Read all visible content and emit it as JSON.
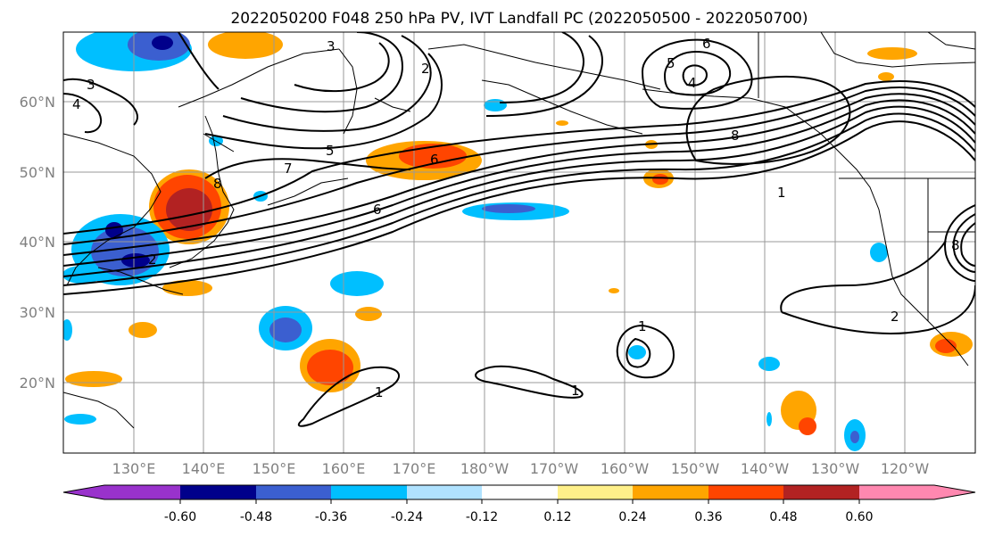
{
  "title": "2022050200 F048 250 hPa PV, IVT Landfall PC (2022050500 - 2022050700)",
  "lat_labels": [
    "60°N",
    "50°N",
    "40°N",
    "30°N",
    "20°N"
  ],
  "lon_labels": [
    "130°E",
    "140°E",
    "150°E",
    "160°E",
    "170°E",
    "180°W",
    "170°W",
    "160°W",
    "150°W",
    "140°W",
    "130°W",
    "120°W"
  ],
  "colorbar": {
    "colors": [
      "#9932cc",
      "#00008b",
      "#3b5fd0",
      "#00bfff",
      "#b0e2ff",
      "#ffffff",
      "#fff08a",
      "#ffa500",
      "#ff4500",
      "#b22222",
      "#ff88b0"
    ],
    "labels": [
      "-0.60",
      "-0.48",
      "-0.36",
      "-0.24",
      "-0.12",
      "0.12",
      "0.24",
      "0.36",
      "0.48",
      "0.60"
    ]
  },
  "contour_labels": [
    "1",
    "2",
    "3",
    "4",
    "5",
    "6",
    "7",
    "8"
  ],
  "colors": {
    "contour": "#000000",
    "grid": "#999999",
    "coast": "#000000"
  }
}
